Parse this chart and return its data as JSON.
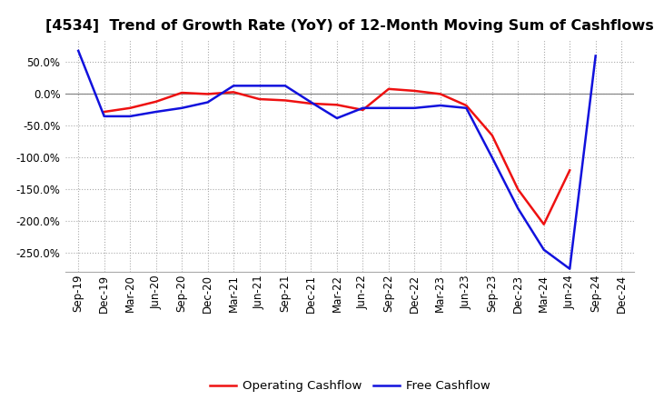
{
  "title": "[4534]  Trend of Growth Rate (YoY) of 12-Month Moving Sum of Cashflows",
  "ylim": [
    -280,
    85
  ],
  "yticks": [
    50,
    0,
    -50,
    -100,
    -150,
    -200,
    -250
  ],
  "background_color": "#ffffff",
  "plot_bg_color": "#ffffff",
  "grid_color": "#aaaaaa",
  "x_labels": [
    "Sep-19",
    "Dec-19",
    "Mar-20",
    "Jun-20",
    "Sep-20",
    "Dec-20",
    "Mar-21",
    "Jun-21",
    "Sep-21",
    "Dec-21",
    "Mar-22",
    "Jun-22",
    "Sep-22",
    "Dec-22",
    "Mar-23",
    "Jun-23",
    "Sep-23",
    "Dec-23",
    "Mar-24",
    "Jun-24",
    "Sep-24",
    "Dec-24"
  ],
  "operating_cashflow": [
    null,
    -28,
    -22,
    -12,
    2,
    0,
    3,
    -8,
    -10,
    -15,
    -17,
    -25,
    8,
    5,
    0,
    -18,
    -65,
    -150,
    -205,
    -120,
    null,
    null
  ],
  "free_cashflow": [
    68,
    -35,
    -35,
    -28,
    -22,
    -13,
    13,
    13,
    13,
    -13,
    -38,
    -22,
    -22,
    -22,
    -18,
    -22,
    -100,
    -180,
    -245,
    -275,
    60,
    null
  ],
  "op_color": "#ee1111",
  "free_color": "#1111dd",
  "legend_labels": [
    "Operating Cashflow",
    "Free Cashflow"
  ],
  "title_fontsize": 11.5,
  "tick_fontsize": 8.5,
  "legend_fontsize": 9.5
}
